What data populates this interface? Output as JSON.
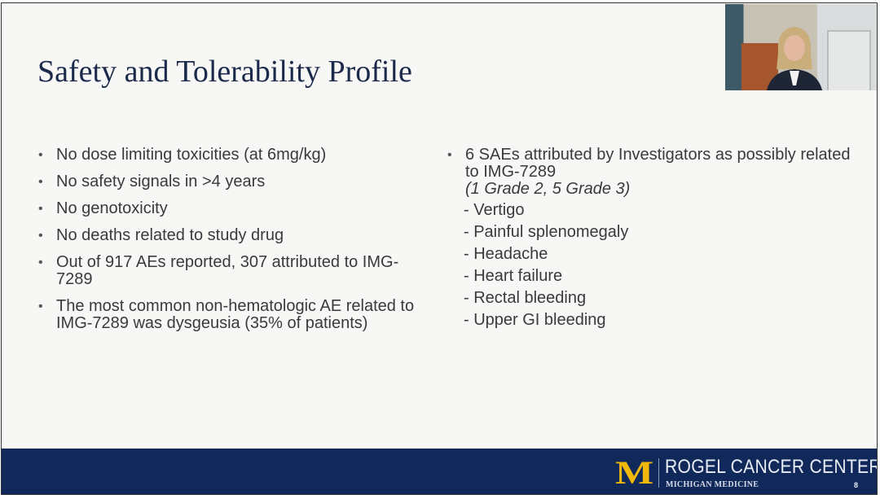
{
  "title": "Safety and Tolerability Profile",
  "left_bullets": [
    "No dose limiting toxicities (at 6mg/kg)",
    "No safety signals in >4 years",
    "No genotoxicity",
    "No deaths related to study drug",
    "Out of 917 AEs reported, 307 attributed to IMG-7289",
    "The most common non-hematologic AE related to IMG-7289 was dysgeusia (35% of patients)"
  ],
  "right": {
    "bullet": "6 SAEs attributed by Investigators as possibly related to IMG-7289",
    "subtitle": "(1 Grade 2, 5 Grade 3)",
    "items": [
      "- Vertigo",
      "- Painful splenomegaly",
      "- Headache",
      "- Heart failure",
      "- Rectal bleeding",
      "- Upper GI bleeding"
    ]
  },
  "footer": {
    "logo_letter": "M",
    "center_name": "ROGEL CANCER CENTER",
    "org": "MICHIGAN MEDICINE",
    "page_number": "8",
    "background": "#10295a",
    "accent": "#f0b90a"
  }
}
